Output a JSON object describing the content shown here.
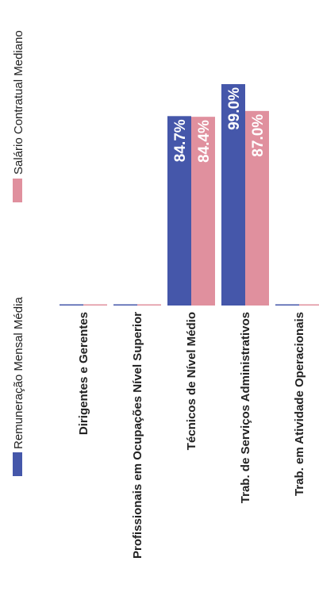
{
  "chart_data": {
    "type": "bar",
    "orientation": "rotated-90",
    "categories": [
      "Dirigentes e Gerentes",
      "Profissionais em Ocupações Nível Superior",
      "Técnicos de Nível Médio",
      "Trab. de Serviços Administrativos",
      "Trab. em Atividade Operacionais"
    ],
    "series": [
      {
        "name": "Remuneração Mensal Média",
        "color": "#4557aa",
        "values": [
          0,
          0,
          84.7,
          99.0,
          0
        ],
        "labels": [
          "",
          "",
          "84.7%",
          "99.0%",
          ""
        ]
      },
      {
        "name": "Salário Contratual Mediano",
        "color": "#e0909e",
        "values": [
          0,
          0,
          84.4,
          87.0,
          0
        ],
        "labels": [
          "",
          "",
          "84.4%",
          "87.0%",
          ""
        ]
      }
    ],
    "ylim": [
      0,
      100
    ],
    "grid": false,
    "legend_position": "top"
  }
}
